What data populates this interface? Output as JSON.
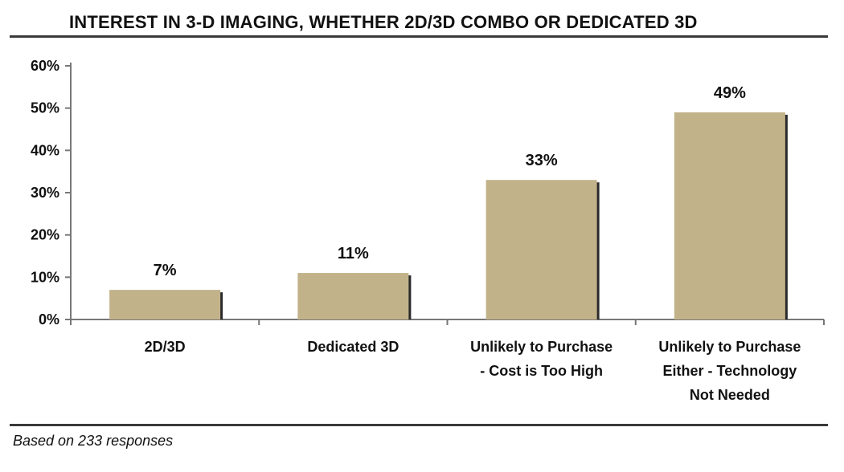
{
  "header": {
    "title": "INTEREST IN 3-D IMAGING, WHETHER 2D/3D COMBO OR DEDICATED 3D"
  },
  "footer": {
    "note": "Based on 233 responses"
  },
  "chart_data": {
    "type": "bar",
    "title": "INTEREST IN 3-D IMAGING, WHETHER 2D/3D COMBO OR DEDICATED 3D",
    "categories": [
      [
        "2D/3D"
      ],
      [
        "Dedicated 3D"
      ],
      [
        "Unlikely to Purchase",
        "- Cost is Too High"
      ],
      [
        "Unlikely to Purchase",
        "Either - Technology",
        "Not Needed"
      ]
    ],
    "values": [
      7,
      11,
      33,
      49
    ],
    "data_labels": [
      "7%",
      "11%",
      "33%",
      "49%"
    ],
    "yticks": [
      "0%",
      "10%",
      "20%",
      "30%",
      "40%",
      "50%",
      "60%"
    ],
    "ylim": [
      0,
      60
    ],
    "xlabel": "",
    "ylabel": "",
    "grid": false,
    "legend": "none",
    "colors": {
      "bar": "#c2b28a",
      "bar_shadow": "#2a2a2a",
      "axis": "#777777"
    }
  }
}
